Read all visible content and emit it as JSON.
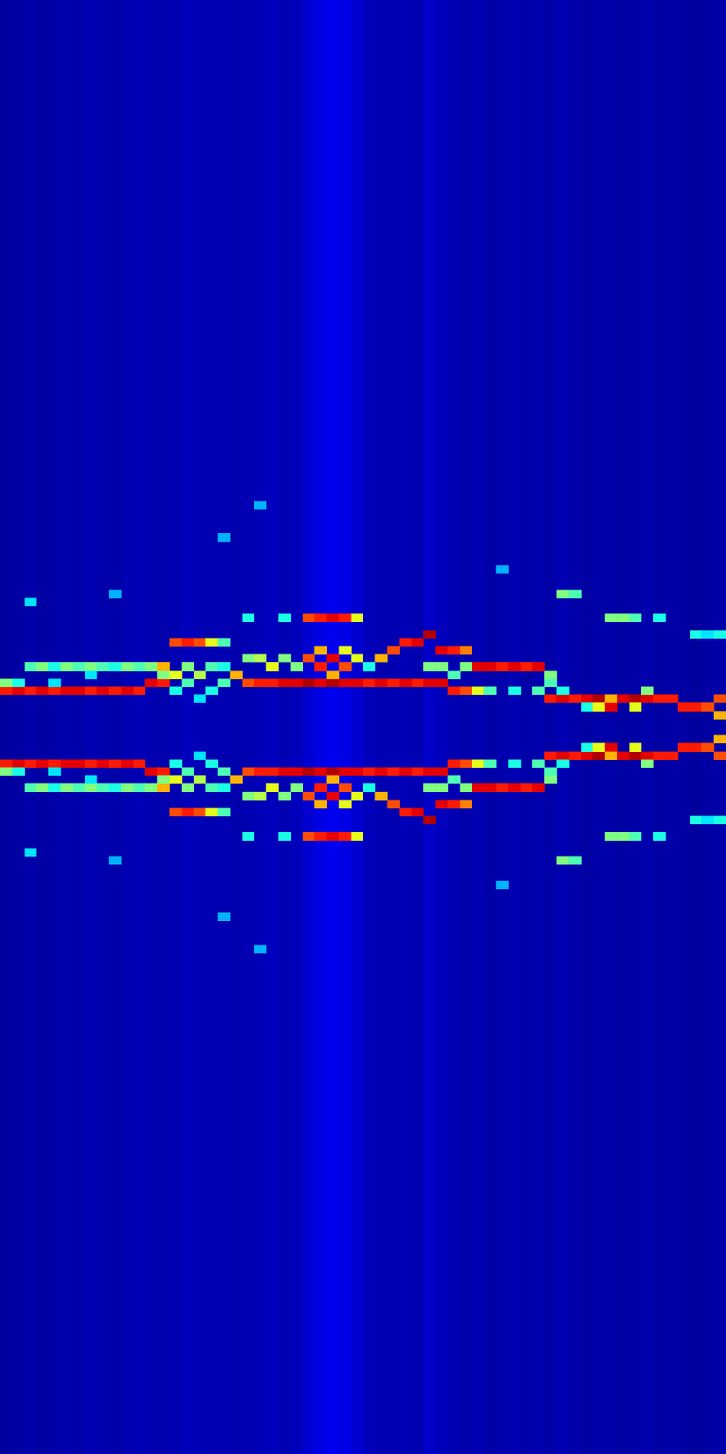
{
  "chart_data": {
    "type": "heatmap",
    "tick_labels": false,
    "columns": 60,
    "rows": 180,
    "zlim": [
      0,
      1
    ],
    "column_background": [
      0.03,
      0.035,
      0.04,
      0.035,
      0.04,
      0.045,
      0.04,
      0.05,
      0.045,
      0.04,
      0.05,
      0.055,
      0.05,
      0.045,
      0.05,
      0.06,
      0.055,
      0.05,
      0.05,
      0.045,
      0.05,
      0.055,
      0.06,
      0.05,
      0.06,
      0.08,
      0.1,
      0.11,
      0.1,
      0.08,
      0.06,
      0.05,
      0.05,
      0.055,
      0.05,
      0.07,
      0.06,
      0.05,
      0.045,
      0.05,
      0.04,
      0.045,
      0.05,
      0.04,
      0.045,
      0.04,
      0.05,
      0.04,
      0.035,
      0.04,
      0.04,
      0.035,
      0.04,
      0.045,
      0.035,
      0.04,
      0.035,
      0.03,
      0.035,
      0.04
    ],
    "cells": [
      [
        0,
        85,
        0.85
      ],
      [
        0,
        84,
        0.5
      ],
      [
        1,
        85,
        0.9
      ],
      [
        1,
        84,
        0.4
      ],
      [
        2,
        85,
        0.85
      ],
      [
        2,
        82,
        0.45
      ],
      [
        2,
        74,
        0.35
      ],
      [
        3,
        85,
        0.9
      ],
      [
        3,
        82,
        0.5
      ],
      [
        4,
        85,
        0.85
      ],
      [
        4,
        84,
        0.35
      ],
      [
        4,
        82,
        0.4
      ],
      [
        5,
        85,
        0.9
      ],
      [
        5,
        82,
        0.5
      ],
      [
        6,
        85,
        0.9
      ],
      [
        6,
        82,
        0.45
      ],
      [
        7,
        85,
        0.85
      ],
      [
        7,
        82,
        0.5
      ],
      [
        7,
        83,
        0.35
      ],
      [
        8,
        85,
        0.9
      ],
      [
        8,
        82,
        0.45
      ],
      [
        9,
        85,
        0.85
      ],
      [
        9,
        82,
        0.4
      ],
      [
        9,
        73,
        0.3
      ],
      [
        10,
        85,
        0.9
      ],
      [
        10,
        82,
        0.5
      ],
      [
        11,
        85,
        0.85
      ],
      [
        11,
        82,
        0.45
      ],
      [
        12,
        84,
        0.9
      ],
      [
        12,
        82,
        0.5
      ],
      [
        13,
        84,
        0.85
      ],
      [
        13,
        82,
        0.7
      ],
      [
        13,
        83,
        0.5
      ],
      [
        14,
        83,
        0.6
      ],
      [
        14,
        79,
        0.8
      ],
      [
        14,
        85,
        0.4
      ],
      [
        15,
        79,
        0.85
      ],
      [
        15,
        82,
        0.5
      ],
      [
        15,
        84,
        0.45
      ],
      [
        16,
        79,
        0.8
      ],
      [
        16,
        83,
        0.55
      ],
      [
        16,
        86,
        0.35
      ],
      [
        17,
        79,
        0.6
      ],
      [
        17,
        82,
        0.45
      ],
      [
        17,
        85,
        0.4
      ],
      [
        18,
        82,
        0.4
      ],
      [
        18,
        84,
        0.45
      ],
      [
        18,
        79,
        0.45
      ],
      [
        18,
        66,
        0.3
      ],
      [
        19,
        83,
        0.7
      ],
      [
        20,
        84,
        0.8
      ],
      [
        20,
        81,
        0.5
      ],
      [
        20,
        76,
        0.4
      ],
      [
        21,
        84,
        0.85
      ],
      [
        21,
        81,
        0.55
      ],
      [
        21,
        62,
        0.3
      ],
      [
        22,
        84,
        0.85
      ],
      [
        22,
        82,
        0.6
      ],
      [
        23,
        84,
        0.9
      ],
      [
        23,
        81,
        0.5
      ],
      [
        23,
        76,
        0.4
      ],
      [
        24,
        84,
        0.9
      ],
      [
        24,
        82,
        0.5
      ],
      [
        25,
        84,
        0.95
      ],
      [
        25,
        81,
        0.8
      ],
      [
        25,
        76,
        0.8
      ],
      [
        26,
        84,
        0.9
      ],
      [
        26,
        82,
        0.85
      ],
      [
        26,
        80,
        0.7
      ],
      [
        26,
        76,
        0.85
      ],
      [
        27,
        84,
        0.95
      ],
      [
        27,
        81,
        0.9
      ],
      [
        27,
        83,
        0.7
      ],
      [
        27,
        76,
        0.9
      ],
      [
        28,
        84,
        0.9
      ],
      [
        28,
        82,
        0.8
      ],
      [
        28,
        80,
        0.6
      ],
      [
        28,
        76,
        0.85
      ],
      [
        29,
        84,
        0.9
      ],
      [
        29,
        81,
        0.6
      ],
      [
        29,
        76,
        0.6
      ],
      [
        30,
        84,
        0.85
      ],
      [
        30,
        82,
        0.4
      ],
      [
        31,
        84,
        0.9
      ],
      [
        31,
        81,
        0.7
      ],
      [
        32,
        84,
        0.85
      ],
      [
        32,
        80,
        0.8
      ],
      [
        33,
        84,
        0.9
      ],
      [
        33,
        79,
        0.85
      ],
      [
        34,
        84,
        0.85
      ],
      [
        34,
        79,
        0.9
      ],
      [
        35,
        84,
        0.9
      ],
      [
        35,
        78,
        0.95
      ],
      [
        35,
        82,
        0.5
      ],
      [
        36,
        84,
        0.9
      ],
      [
        36,
        80,
        0.9
      ],
      [
        36,
        82,
        0.5
      ],
      [
        37,
        85,
        0.85
      ],
      [
        37,
        80,
        0.85
      ],
      [
        37,
        83,
        0.45
      ],
      [
        38,
        85,
        0.8
      ],
      [
        38,
        80,
        0.75
      ],
      [
        38,
        82,
        0.5
      ],
      [
        39,
        82,
        0.9
      ],
      [
        39,
        85,
        0.6
      ],
      [
        40,
        82,
        0.9
      ],
      [
        40,
        85,
        0.45
      ],
      [
        41,
        82,
        0.85
      ],
      [
        41,
        70,
        0.3
      ],
      [
        42,
        82,
        0.9
      ],
      [
        42,
        85,
        0.4
      ],
      [
        43,
        82,
        0.85
      ],
      [
        44,
        82,
        0.9
      ],
      [
        44,
        85,
        0.45
      ],
      [
        45,
        86,
        0.85
      ],
      [
        45,
        83,
        0.5
      ],
      [
        45,
        84,
        0.45
      ],
      [
        46,
        86,
        0.9
      ],
      [
        46,
        73,
        0.5
      ],
      [
        46,
        85,
        0.4
      ],
      [
        47,
        86,
        0.85
      ],
      [
        47,
        73,
        0.45
      ],
      [
        48,
        86,
        0.9
      ],
      [
        48,
        87,
        0.4
      ],
      [
        49,
        86,
        0.95
      ],
      [
        49,
        87,
        0.6
      ],
      [
        50,
        87,
        0.9
      ],
      [
        50,
        86,
        0.7
      ],
      [
        50,
        76,
        0.5
      ],
      [
        51,
        86,
        0.9
      ],
      [
        51,
        76,
        0.5
      ],
      [
        52,
        86,
        0.95
      ],
      [
        52,
        87,
        0.6
      ],
      [
        52,
        76,
        0.45
      ],
      [
        53,
        86,
        0.9
      ],
      [
        53,
        85,
        0.5
      ],
      [
        54,
        86,
        0.85
      ],
      [
        54,
        76,
        0.4
      ],
      [
        55,
        86,
        0.85
      ],
      [
        56,
        87,
        0.85
      ],
      [
        57,
        87,
        0.85
      ],
      [
        57,
        78,
        0.4
      ],
      [
        58,
        87,
        0.8
      ],
      [
        58,
        78,
        0.35
      ],
      [
        59,
        86,
        0.8
      ],
      [
        59,
        88,
        0.7
      ],
      [
        59,
        78,
        0.4
      ],
      [
        0,
        94,
        0.85
      ],
      [
        0,
        95,
        0.5
      ],
      [
        1,
        94,
        0.9
      ],
      [
        1,
        95,
        0.4
      ],
      [
        2,
        94,
        0.85
      ],
      [
        2,
        97,
        0.45
      ],
      [
        2,
        105,
        0.35
      ],
      [
        3,
        94,
        0.9
      ],
      [
        3,
        97,
        0.5
      ],
      [
        4,
        94,
        0.85
      ],
      [
        4,
        95,
        0.35
      ],
      [
        4,
        97,
        0.4
      ],
      [
        5,
        94,
        0.9
      ],
      [
        5,
        97,
        0.5
      ],
      [
        6,
        94,
        0.9
      ],
      [
        6,
        97,
        0.45
      ],
      [
        7,
        94,
        0.85
      ],
      [
        7,
        97,
        0.5
      ],
      [
        7,
        96,
        0.35
      ],
      [
        8,
        94,
        0.9
      ],
      [
        8,
        97,
        0.45
      ],
      [
        9,
        94,
        0.85
      ],
      [
        9,
        97,
        0.4
      ],
      [
        9,
        106,
        0.3
      ],
      [
        10,
        94,
        0.9
      ],
      [
        10,
        97,
        0.5
      ],
      [
        11,
        94,
        0.85
      ],
      [
        11,
        97,
        0.45
      ],
      [
        12,
        95,
        0.9
      ],
      [
        12,
        97,
        0.5
      ],
      [
        13,
        95,
        0.85
      ],
      [
        13,
        97,
        0.7
      ],
      [
        13,
        96,
        0.5
      ],
      [
        14,
        96,
        0.6
      ],
      [
        14,
        100,
        0.8
      ],
      [
        14,
        94,
        0.4
      ],
      [
        15,
        100,
        0.85
      ],
      [
        15,
        97,
        0.5
      ],
      [
        15,
        95,
        0.45
      ],
      [
        16,
        100,
        0.8
      ],
      [
        16,
        96,
        0.55
      ],
      [
        16,
        93,
        0.35
      ],
      [
        17,
        100,
        0.6
      ],
      [
        17,
        97,
        0.45
      ],
      [
        17,
        94,
        0.4
      ],
      [
        18,
        97,
        0.4
      ],
      [
        18,
        95,
        0.45
      ],
      [
        18,
        100,
        0.45
      ],
      [
        18,
        113,
        0.3
      ],
      [
        19,
        96,
        0.7
      ],
      [
        20,
        95,
        0.8
      ],
      [
        20,
        98,
        0.5
      ],
      [
        20,
        103,
        0.4
      ],
      [
        21,
        95,
        0.85
      ],
      [
        21,
        98,
        0.55
      ],
      [
        21,
        117,
        0.3
      ],
      [
        22,
        95,
        0.85
      ],
      [
        22,
        97,
        0.6
      ],
      [
        23,
        95,
        0.9
      ],
      [
        23,
        98,
        0.5
      ],
      [
        23,
        103,
        0.4
      ],
      [
        24,
        95,
        0.9
      ],
      [
        24,
        97,
        0.5
      ],
      [
        25,
        95,
        0.95
      ],
      [
        25,
        98,
        0.8
      ],
      [
        25,
        103,
        0.8
      ],
      [
        26,
        95,
        0.9
      ],
      [
        26,
        97,
        0.85
      ],
      [
        26,
        99,
        0.7
      ],
      [
        26,
        103,
        0.85
      ],
      [
        27,
        95,
        0.95
      ],
      [
        27,
        98,
        0.9
      ],
      [
        27,
        96,
        0.7
      ],
      [
        27,
        103,
        0.9
      ],
      [
        28,
        95,
        0.9
      ],
      [
        28,
        97,
        0.8
      ],
      [
        28,
        99,
        0.6
      ],
      [
        28,
        103,
        0.85
      ],
      [
        29,
        95,
        0.9
      ],
      [
        29,
        98,
        0.6
      ],
      [
        29,
        103,
        0.6
      ],
      [
        30,
        95,
        0.85
      ],
      [
        30,
        97,
        0.4
      ],
      [
        31,
        95,
        0.9
      ],
      [
        31,
        98,
        0.7
      ],
      [
        32,
        95,
        0.85
      ],
      [
        32,
        99,
        0.8
      ],
      [
        33,
        95,
        0.9
      ],
      [
        33,
        100,
        0.85
      ],
      [
        34,
        95,
        0.85
      ],
      [
        34,
        100,
        0.9
      ],
      [
        35,
        95,
        0.9
      ],
      [
        35,
        101,
        0.95
      ],
      [
        35,
        97,
        0.5
      ],
      [
        36,
        95,
        0.9
      ],
      [
        36,
        99,
        0.9
      ],
      [
        36,
        97,
        0.5
      ],
      [
        37,
        94,
        0.85
      ],
      [
        37,
        99,
        0.85
      ],
      [
        37,
        96,
        0.45
      ],
      [
        38,
        94,
        0.8
      ],
      [
        38,
        99,
        0.75
      ],
      [
        38,
        97,
        0.5
      ],
      [
        39,
        97,
        0.9
      ],
      [
        39,
        94,
        0.6
      ],
      [
        40,
        97,
        0.9
      ],
      [
        40,
        94,
        0.45
      ],
      [
        41,
        97,
        0.85
      ],
      [
        41,
        109,
        0.3
      ],
      [
        42,
        97,
        0.9
      ],
      [
        42,
        94,
        0.4
      ],
      [
        43,
        97,
        0.85
      ],
      [
        44,
        97,
        0.9
      ],
      [
        44,
        94,
        0.45
      ],
      [
        45,
        93,
        0.85
      ],
      [
        45,
        96,
        0.5
      ],
      [
        45,
        95,
        0.45
      ],
      [
        46,
        93,
        0.9
      ],
      [
        46,
        106,
        0.5
      ],
      [
        46,
        94,
        0.4
      ],
      [
        47,
        93,
        0.85
      ],
      [
        47,
        106,
        0.45
      ],
      [
        48,
        93,
        0.9
      ],
      [
        48,
        92,
        0.4
      ],
      [
        49,
        93,
        0.95
      ],
      [
        49,
        92,
        0.6
      ],
      [
        50,
        92,
        0.9
      ],
      [
        50,
        93,
        0.7
      ],
      [
        50,
        103,
        0.5
      ],
      [
        51,
        93,
        0.9
      ],
      [
        51,
        103,
        0.5
      ],
      [
        52,
        93,
        0.95
      ],
      [
        52,
        92,
        0.6
      ],
      [
        52,
        103,
        0.45
      ],
      [
        53,
        93,
        0.9
      ],
      [
        53,
        94,
        0.5
      ],
      [
        54,
        93,
        0.85
      ],
      [
        54,
        103,
        0.4
      ],
      [
        55,
        93,
        0.85
      ],
      [
        56,
        92,
        0.85
      ],
      [
        57,
        92,
        0.85
      ],
      [
        57,
        101,
        0.4
      ],
      [
        58,
        92,
        0.8
      ],
      [
        58,
        101,
        0.35
      ],
      [
        59,
        93,
        0.8
      ],
      [
        59,
        91,
        0.7
      ],
      [
        59,
        101,
        0.4
      ]
    ]
  }
}
